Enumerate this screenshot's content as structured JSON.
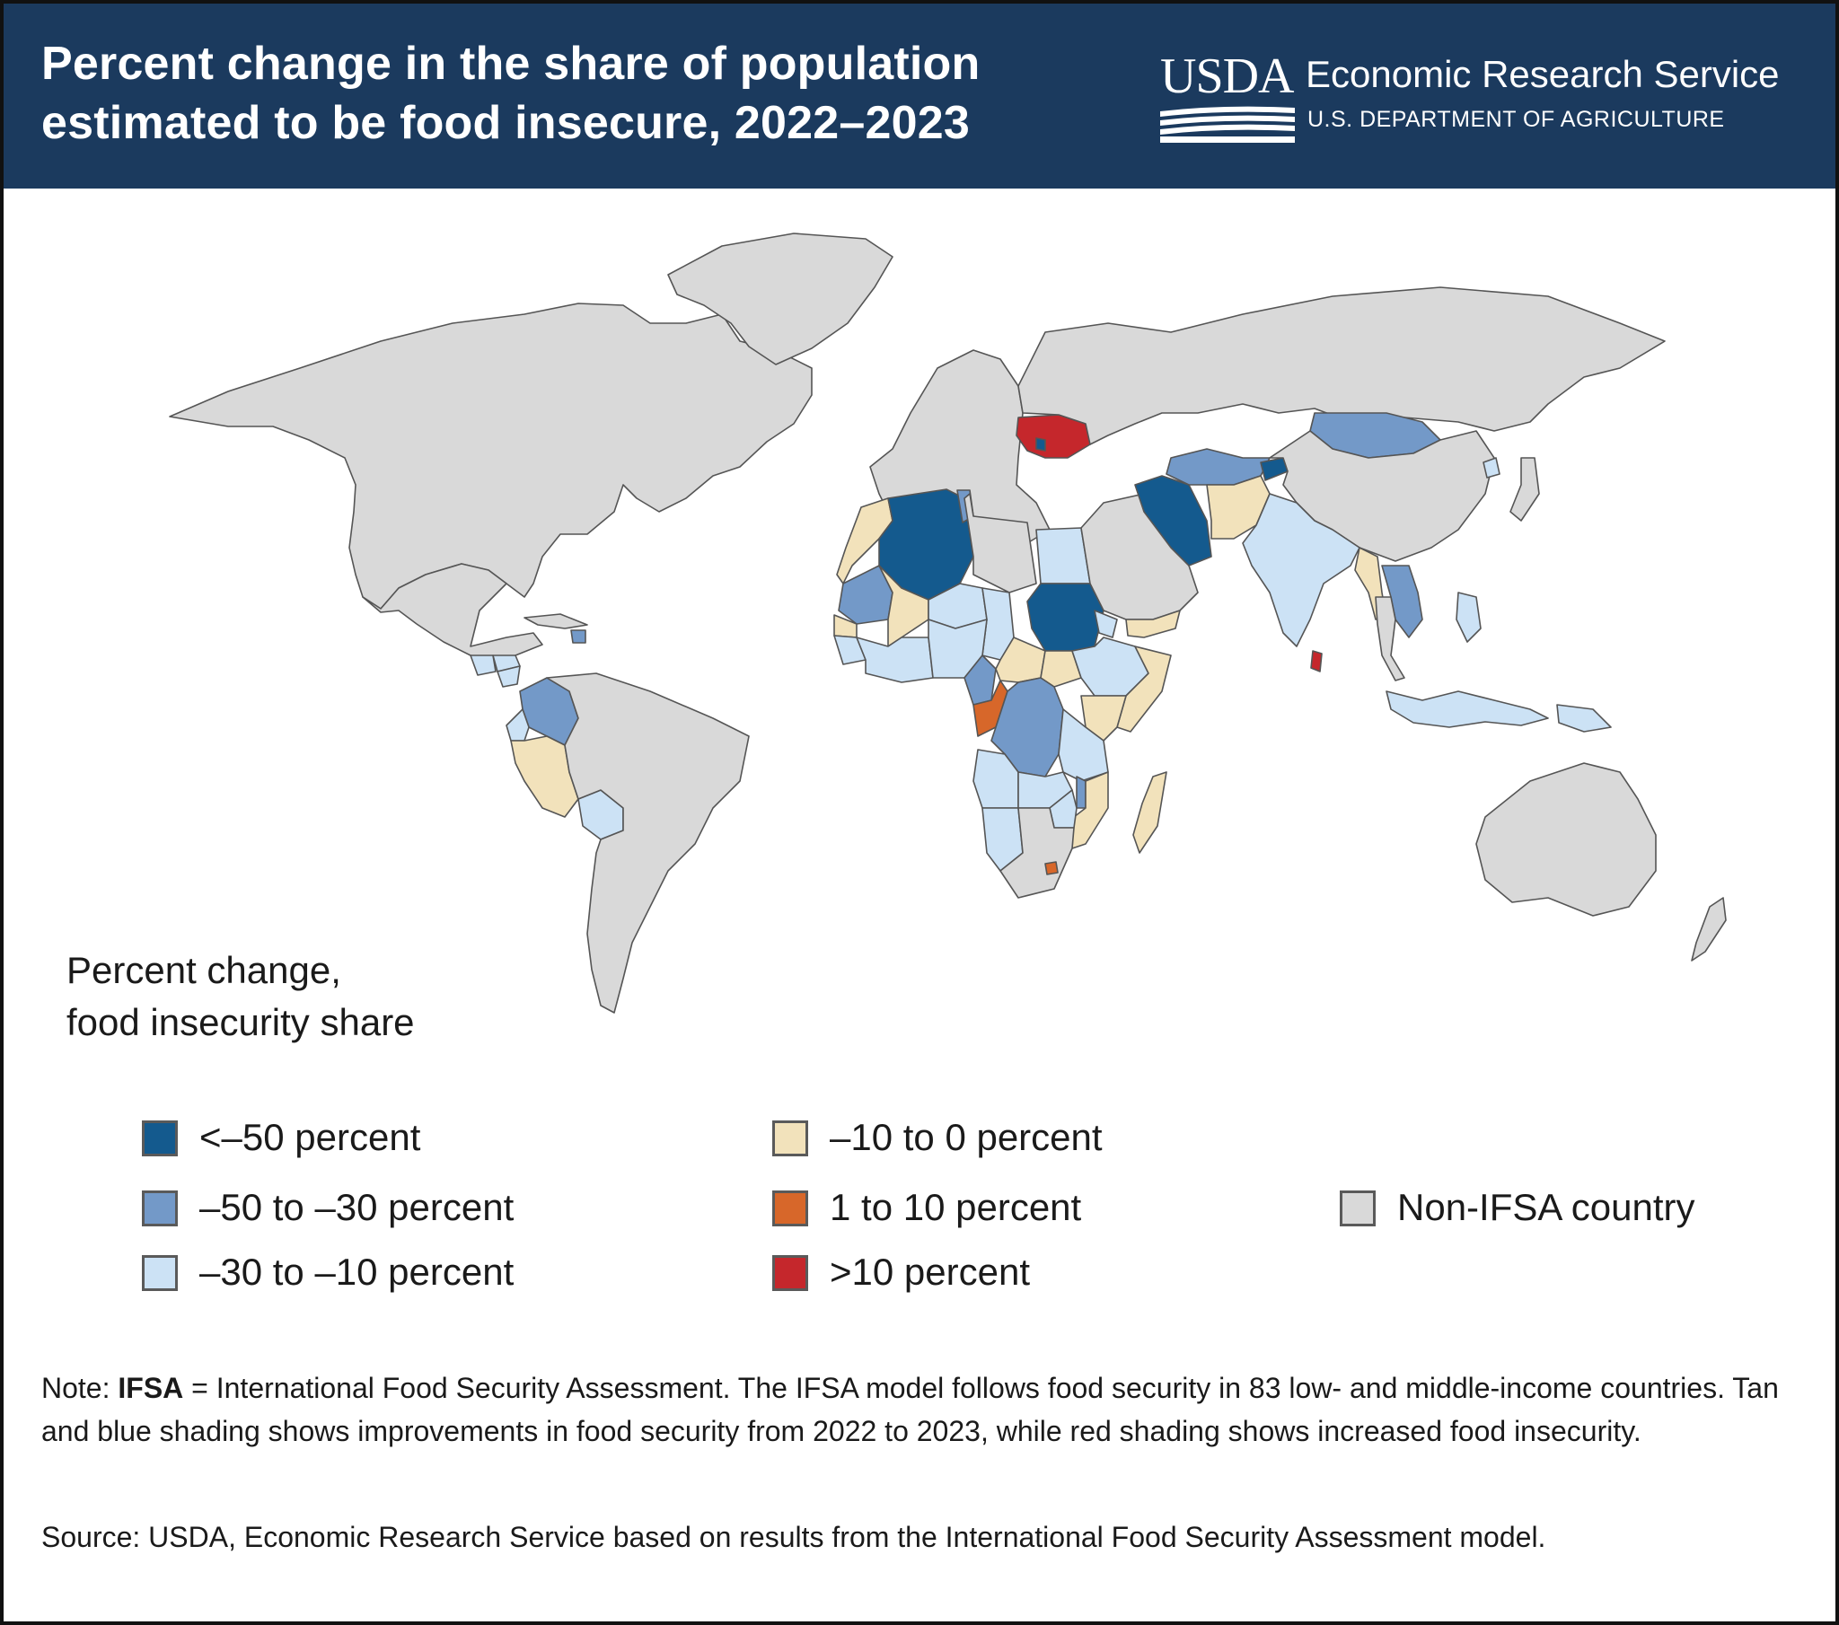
{
  "header": {
    "title_line1": "Percent change in the share of population",
    "title_line2": "estimated to be food insecure, 2022–2023",
    "logo_text": "USDA",
    "agency_name": "Economic Research Service",
    "department": "U.S. DEPARTMENT OF AGRICULTURE"
  },
  "colors": {
    "header_bg": "#1b3a5e",
    "lt_neg50": "#145a8e",
    "neg50_neg30": "#7399c8",
    "neg30_neg10": "#cce2f5",
    "neg10_0": "#f2e2bb",
    "pos1_10": "#d7672a",
    "gt10": "#c5272c",
    "non_ifsa": "#d9d9d9",
    "ocean": "#ffffff"
  },
  "legend": {
    "title_line1": "Percent change,",
    "title_line2": "food insecurity share",
    "items": [
      {
        "key": "lt_neg50",
        "label": "<–50 percent"
      },
      {
        "key": "neg50_neg30",
        "label": "–50 to –30 percent"
      },
      {
        "key": "neg30_neg10",
        "label": "–30 to –10 percent"
      },
      {
        "key": "neg10_0",
        "label": "–10 to 0 percent"
      },
      {
        "key": "pos1_10",
        "label": "1 to 10 percent"
      },
      {
        "key": "gt10",
        "label": ">10 percent"
      },
      {
        "key": "non_ifsa",
        "label": "Non-IFSA country"
      }
    ]
  },
  "map": {
    "category_by_region": {
      "north-america": "non_ifsa",
      "greenland": "non_ifsa",
      "mexico": "non_ifsa",
      "guatemala": "neg30_neg10",
      "honduras": "neg30_neg10",
      "nicaragua": "neg30_neg10",
      "haiti": "neg50_neg30",
      "colombia": "neg50_neg30",
      "ecuador": "neg30_neg10",
      "peru": "neg10_0",
      "bolivia": "neg30_neg10",
      "south-america": "non_ifsa",
      "europe": "non_ifsa",
      "ukraine": "gt10",
      "moldova": "lt_neg50",
      "russia": "non_ifsa",
      "algeria": "lt_neg50",
      "tunisia": "neg50_neg30",
      "morocco": "neg10_0",
      "mauritania": "neg50_neg30",
      "mali": "neg10_0",
      "niger": "neg30_neg10",
      "chad": "neg30_neg10",
      "senegal": "neg10_0",
      "guinea": "neg30_neg10",
      "west-africa-coast": "neg30_neg10",
      "nigeria": "neg30_neg10",
      "cameroon": "neg50_neg30",
      "car": "neg10_0",
      "egypt": "neg30_neg10",
      "sudan": "lt_neg50",
      "south-sudan": "neg10_0",
      "ethiopia": "neg30_neg10",
      "eritrea": "neg30_neg10",
      "somalia": "neg10_0",
      "kenya": "neg10_0",
      "congo": "pos1_10",
      "drc": "neg50_neg30",
      "tanzania": "neg30_neg10",
      "angola": "neg30_neg10",
      "zambia": "neg30_neg10",
      "malawi": "neg50_neg30",
      "mozambique": "neg10_0",
      "zimbabwe": "neg30_neg10",
      "namibia": "neg30_neg10",
      "south-africa": "non_ifsa",
      "lesotho": "pos1_10",
      "madagascar": "neg10_0",
      "middle-east": "non_ifsa",
      "yemen": "neg10_0",
      "iran": "lt_neg50",
      "central-asia": "neg50_neg30",
      "kyrgyzstan": "lt_neg50",
      "afghanistan": "neg10_0",
      "mongolia": "neg50_neg30",
      "india": "neg30_neg10",
      "myanmar": "neg10_0",
      "laos-vietnam": "neg50_neg30",
      "sri-lanka": "gt10",
      "china": "non_ifsa",
      "north-korea": "neg30_neg10",
      "philippines": "neg30_neg10",
      "indonesia": "neg30_neg10",
      "png": "neg30_neg10",
      "australia": "non_ifsa",
      "new-zealand": "non_ifsa"
    }
  },
  "note": {
    "prefix": "Note: ",
    "bold": "IFSA",
    "text": " = International Food Security Assessment. The IFSA model follows food security in 83 low- and middle-income countries. Tan and blue shading shows improvements in food security from 2022 to 2023, while red shading shows increased food insecurity."
  },
  "source": "Source: USDA, Economic Research Service based on results from the International Food Security Assessment model."
}
